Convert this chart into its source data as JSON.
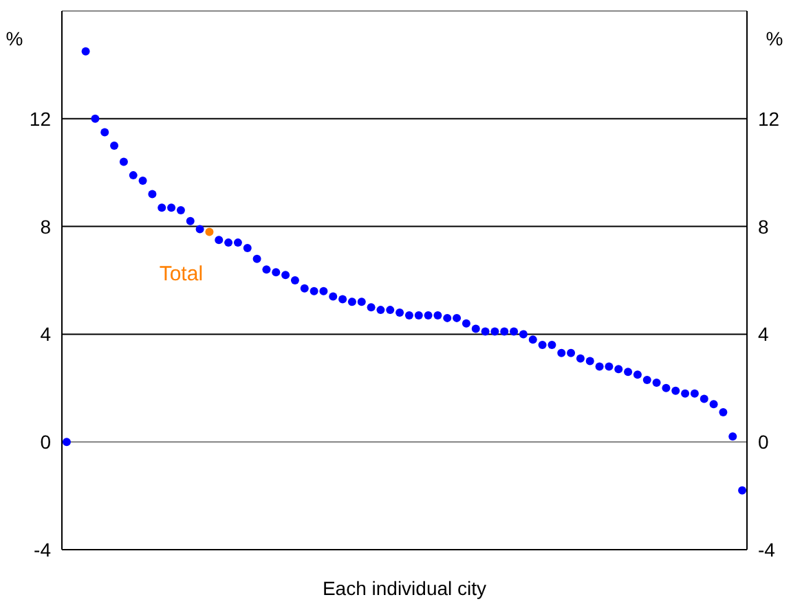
{
  "chart_data": {
    "type": "scatter",
    "xlabel": "Each individual city",
    "ylabel": "%",
    "y2label": "%",
    "categories": [
      null,
      null,
      null,
      null,
      null,
      null,
      null,
      null,
      null,
      null,
      null,
      null,
      null,
      null,
      null,
      null,
      null,
      null,
      null,
      null,
      null,
      null,
      null,
      null,
      null,
      null,
      null,
      null,
      null,
      null,
      null,
      null,
      null,
      null,
      null,
      null,
      null,
      null,
      null,
      null,
      null,
      null,
      null,
      null,
      null,
      null,
      null,
      null,
      null,
      null,
      null,
      null,
      null,
      null,
      null,
      null,
      null,
      null,
      null,
      null,
      null,
      null,
      null,
      null,
      null,
      null,
      null,
      null,
      null,
      null,
      null,
      null
    ],
    "series": [
      {
        "color": "#0000ff",
        "values": [
          0,
          null,
          14.5,
          12.0,
          11.5,
          11.0,
          10.4,
          9.9,
          9.7,
          9.2,
          8.7,
          8.7,
          8.6,
          8.2,
          7.9,
          null,
          7.5,
          7.4,
          7.4,
          7.2,
          6.8,
          6.4,
          6.3,
          6.2,
          6.0,
          5.7,
          5.6,
          5.6,
          5.4,
          5.3,
          5.2,
          5.2,
          5.0,
          4.9,
          4.9,
          4.8,
          4.7,
          4.7,
          4.7,
          4.7,
          4.6,
          4.6,
          4.4,
          4.2,
          4.1,
          4.1,
          4.1,
          4.1,
          4.0,
          3.8,
          3.6,
          3.6,
          3.3,
          3.3,
          3.1,
          3.0,
          2.8,
          2.8,
          2.7,
          2.6,
          2.5,
          2.3,
          2.2,
          2.0,
          1.9,
          1.8,
          1.8,
          1.6,
          1.4,
          1.1,
          0.2,
          -1.8
        ]
      },
      {
        "name": "Total",
        "color": "#ff7f00",
        "values": [
          null,
          null,
          null,
          null,
          null,
          null,
          null,
          null,
          null,
          null,
          null,
          null,
          null,
          null,
          null,
          7.8,
          null,
          null,
          null,
          null,
          null,
          null,
          null,
          null,
          null,
          null,
          null,
          null,
          null,
          null,
          null,
          null,
          null,
          null,
          null,
          null,
          null,
          null,
          null,
          null,
          null,
          null,
          null,
          null,
          null,
          null,
          null,
          null,
          null,
          null,
          null,
          null,
          null,
          null,
          null,
          null,
          null,
          null,
          null,
          null,
          null,
          null,
          null,
          null,
          null,
          null,
          null,
          null,
          null,
          null,
          null,
          null
        ]
      }
    ],
    "ylim": [
      -4,
      16
    ],
    "yticks": [
      -4,
      0,
      4,
      8,
      12
    ],
    "y2lim": [
      -4,
      16
    ],
    "y2ticks": [
      -4,
      0,
      4,
      8,
      12
    ],
    "grid": "y",
    "legend": false,
    "marker": "circle"
  }
}
